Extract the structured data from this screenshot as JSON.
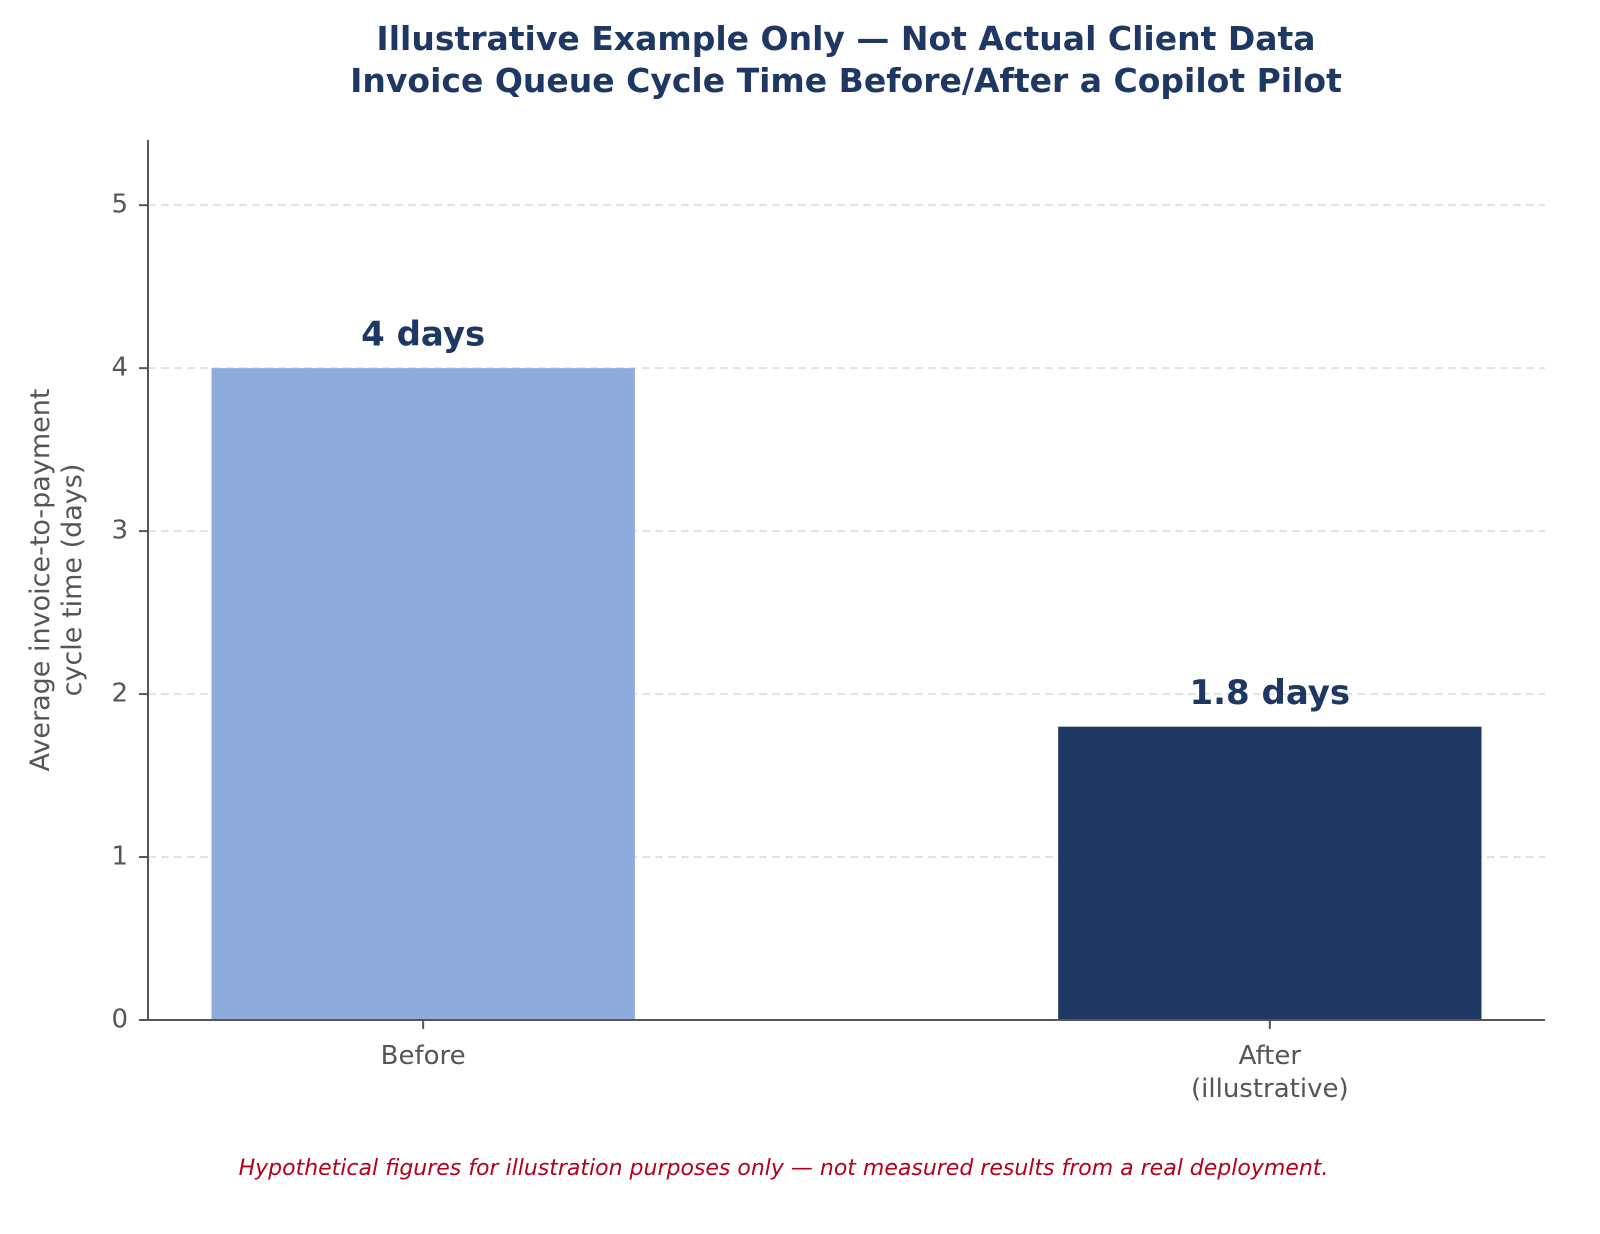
{
  "chart_data": {
    "type": "bar",
    "title": "Illustrative Example Only — Not Actual Client Data\nInvoice Queue Cycle Time Before/After a Copilot Pilot",
    "y_label": "Average invoice-to-payment\ncycle time (days)",
    "categories": [
      "Before",
      "After\n(illustrative)"
    ],
    "values": [
      4,
      1.8
    ],
    "value_labels": [
      "4 days",
      "1.8 days"
    ],
    "colors": [
      "#8faadc",
      "#1f3763"
    ],
    "ylim": [
      0,
      5.4
    ],
    "yticks": [
      0,
      1,
      2,
      3,
      4,
      5
    ],
    "grid": true,
    "footnote": "Hypothetical figures for illustration purposes only — not measured results from a real deployment."
  }
}
